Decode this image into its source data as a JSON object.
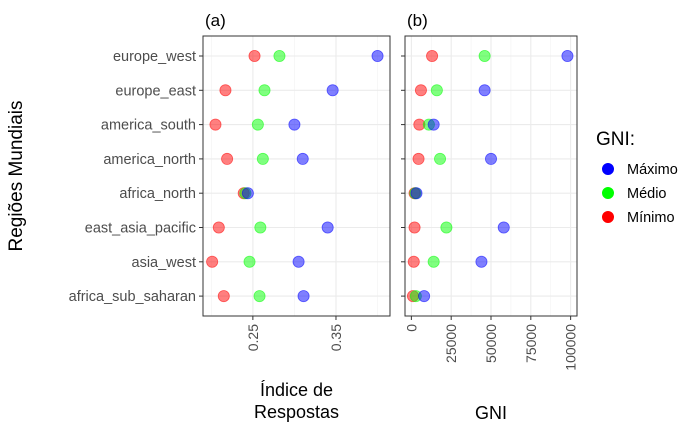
{
  "chart_data": {
    "type": "scatter",
    "ylabel": "Regiões Mundiais",
    "categories": [
      "europe_west",
      "europe_east",
      "america_south",
      "america_north",
      "africa_north",
      "east_asia_pacific",
      "asia_west",
      "africa_sub_saharan"
    ],
    "legend": {
      "title": "GNI:",
      "position": "right",
      "entries": [
        {
          "label": "Máximo",
          "color": "#0000ff"
        },
        {
          "label": "Médio",
          "color": "#00ff00"
        },
        {
          "label": "Mínimo",
          "color": "#ff0000"
        }
      ]
    },
    "grid": true,
    "panels": [
      {
        "tag": "(a)",
        "xlabel": [
          "Índice de",
          "Respostas"
        ],
        "xlim": [
          0.19,
          0.415
        ],
        "xticks": [
          0.25,
          0.35
        ],
        "xtick_labels": [
          "0.25",
          "0.35"
        ],
        "series": [
          {
            "name": "Máximo",
            "values": [
              0.4,
              0.346,
              0.3,
              0.31,
              0.244,
              0.34,
              0.305,
              0.311
            ]
          },
          {
            "name": "Médio",
            "values": [
              0.282,
              0.264,
              0.256,
              0.262,
              0.241,
              0.259,
              0.246,
              0.258
            ]
          },
          {
            "name": "Mínimo",
            "values": [
              0.252,
              0.217,
              0.205,
              0.219,
              0.239,
              0.209,
              0.201,
              0.215
            ]
          }
        ]
      },
      {
        "tag": "(b)",
        "xlabel": [
          "GNI"
        ],
        "xlim": [
          -4000,
          104000
        ],
        "xticks": [
          0,
          25000,
          50000,
          75000,
          100000
        ],
        "xtick_labels": [
          "0",
          "25000",
          "50000",
          "75000",
          "100000"
        ],
        "series": [
          {
            "name": "Máximo",
            "values": [
              98000,
              46000,
              14000,
              50000,
              3200,
              58000,
              44000,
              8000
            ]
          },
          {
            "name": "Médio",
            "values": [
              46000,
              16000,
              11000,
              18000,
              2500,
              22000,
              14000,
              2800
            ]
          },
          {
            "name": "Mínimo",
            "values": [
              13000,
              6000,
              5000,
              4500,
              2000,
              2000,
              1500,
              1000
            ]
          }
        ]
      }
    ]
  }
}
